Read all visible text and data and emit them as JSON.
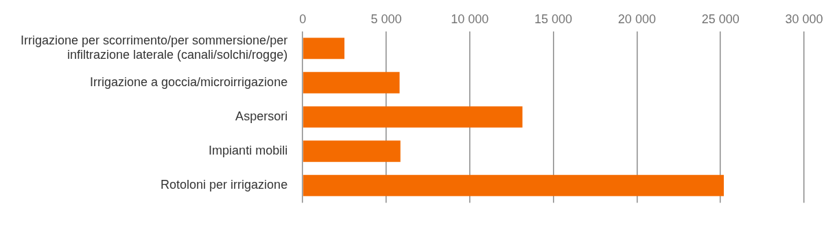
{
  "chart_data": {
    "type": "bar",
    "orientation": "horizontal",
    "categories": [
      "Irrigazione per scorrimento/per sommersione/per infiltrazione laterale (canali/solchi/rogge)",
      "Irrigazione a goccia/microirrigazione",
      "Aspersori",
      "Impianti mobili",
      "Rotoloni per irrigazione"
    ],
    "values": [
      2500,
      5800,
      13150,
      5850,
      25200
    ],
    "color": "#f46b00",
    "xlim": [
      0,
      30000
    ],
    "xticks": [
      {
        "value": 0,
        "label": "0"
      },
      {
        "value": 5000,
        "label": "5 000"
      },
      {
        "value": 10000,
        "label": "10 000"
      },
      {
        "value": 15000,
        "label": "15 000"
      },
      {
        "value": 20000,
        "label": "20 000"
      },
      {
        "value": 25000,
        "label": "25 000"
      },
      {
        "value": 30000,
        "label": "30 000"
      }
    ],
    "grid": "x",
    "legend": false
  }
}
